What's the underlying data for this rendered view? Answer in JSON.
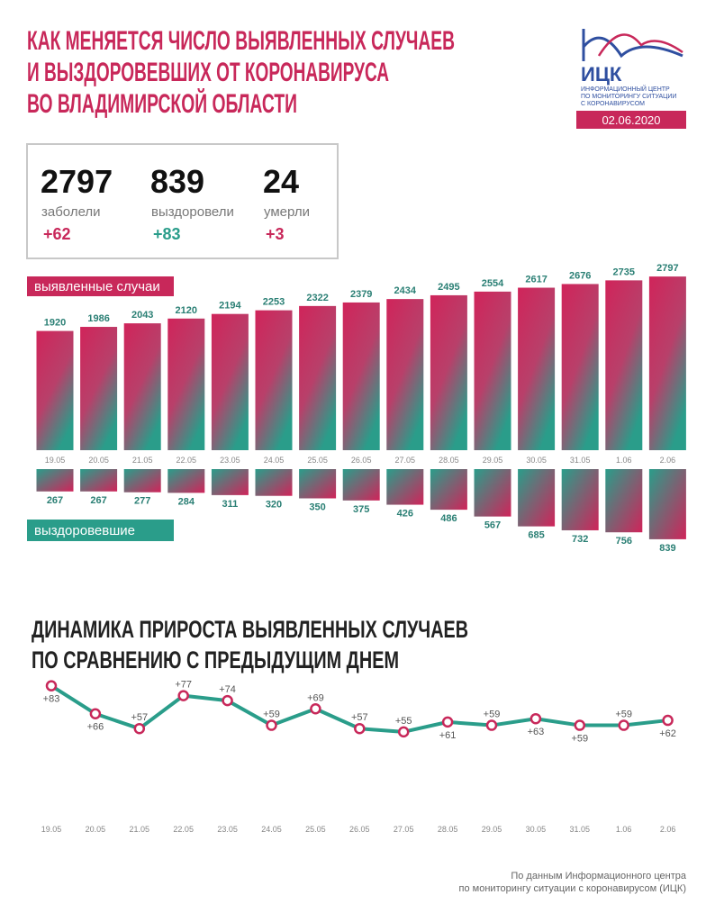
{
  "header": {
    "title": [
      "КАК МЕНЯЕТСЯ ЧИСЛО ВЫЯВЛЕННЫХ СЛУЧАЕВ",
      "И ВЫЗДОРОВЕВШИХ ОТ КОРОНАВИРУСА",
      "ВО ВЛАДИМИРСКОЙ ОБЛАСТИ"
    ],
    "logo": "ИЦК",
    "logo_text": [
      "ИНФОРМАЦИОННЫЙ ЦЕНТР",
      "ПО МОНИТОРИНГУ СИТУАЦИИ",
      "С КОРОНАВИРУСОМ"
    ],
    "date": "02.06.2020"
  },
  "stats": [
    {
      "value": "2797",
      "label": "заболели",
      "delta": "+62"
    },
    {
      "value": "839",
      "label": "выздоровели",
      "delta": "+83"
    },
    {
      "value": "24",
      "label": "умерли",
      "delta": "+3"
    }
  ],
  "chart_data": [
    {
      "type": "bar",
      "categories": [
        "19.05",
        "20.05",
        "21.05",
        "22.05",
        "23.05",
        "24.05",
        "25.05",
        "26.05",
        "27.05",
        "28.05",
        "29.05",
        "30.05",
        "31.05",
        "1.06",
        "2.06"
      ],
      "series": [
        {
          "name": "выявленные случаи",
          "color": "#c8285a",
          "values": [
            1920,
            1986,
            2043,
            2120,
            2194,
            2253,
            2322,
            2379,
            2434,
            2495,
            2554,
            2617,
            2676,
            2735,
            2797
          ]
        }
      ],
      "ylim": [
        0,
        2900
      ]
    },
    {
      "type": "bar-down",
      "series": [
        {
          "name": "выздоровевшие",
          "color": "#2a9d8a",
          "values": [
            267,
            267,
            277,
            284,
            311,
            320,
            350,
            375,
            426,
            486,
            567,
            685,
            732,
            756,
            839
          ]
        }
      ],
      "ylim": [
        0,
        840
      ]
    },
    {
      "type": "line",
      "title": "ДИНАМИКА ПРИРОСТА ВЫЯВЛЕННЫХ СЛУЧАЕВ",
      "subtitle": "ПО СРАВНЕНИЮ С ПРЕДЫДУЩИМ ДНЕМ",
      "categories": [
        "19.05",
        "20.05",
        "21.05",
        "22.05",
        "23.05",
        "24.05",
        "25.05",
        "26.05",
        "27.05",
        "28.05",
        "29.05",
        "30.05",
        "31.05",
        "1.06",
        "2.06"
      ],
      "values": [
        83,
        66,
        57,
        77,
        74,
        59,
        69,
        57,
        55,
        61,
        59,
        63,
        59,
        59,
        62
      ],
      "value_labels": [
        "+83",
        "+66",
        "+57",
        "+77",
        "+74",
        "+59",
        "+69",
        "+57",
        "+55",
        "+61",
        "+59",
        "+63",
        "+59",
        "+59",
        "+62"
      ],
      "color": "#2a9d8a",
      "marker_color": "#c8285a",
      "ylim": [
        50,
        85
      ]
    }
  ],
  "footer": [
    "По данным Информационного центра",
    "по мониторингу ситуации с коронавирусом (ИЦК)"
  ]
}
